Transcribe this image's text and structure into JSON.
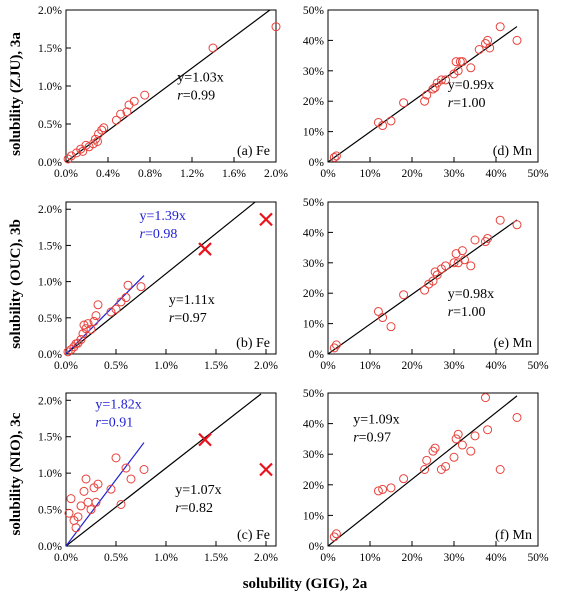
{
  "figure": {
    "xlabel": "solubility (GIG), 2a",
    "row_labels": [
      "solubility (ZJU), 3a",
      "solubility (OUC), 3b",
      "solubility (NIO), 3c"
    ]
  },
  "colors": {
    "points": "#e8413b",
    "fit_black": "#000000",
    "fit_blue": "#1f1fd6",
    "axis": "#000000"
  },
  "chart_data": [
    {
      "id": "a",
      "type": "scatter",
      "panel_label": "(a) Fe",
      "xlim": [
        0,
        2.0
      ],
      "ylim": [
        0,
        2.0
      ],
      "xticks": [
        "0.0%",
        "0.4%",
        "0.8%",
        "1.2%",
        "1.6%",
        "2.0%"
      ],
      "yticks": [
        "0.0%",
        "0.5%",
        "1.0%",
        "1.5%",
        "2.0%"
      ],
      "xtick_values": [
        0,
        0.4,
        0.8,
        1.2,
        1.6,
        2.0
      ],
      "ytick_values": [
        0,
        0.5,
        1.0,
        1.5,
        2.0
      ],
      "points": [
        [
          0.02,
          0.04
        ],
        [
          0.05,
          0.08
        ],
        [
          0.1,
          0.12
        ],
        [
          0.14,
          0.17
        ],
        [
          0.16,
          0.14
        ],
        [
          0.19,
          0.22
        ],
        [
          0.22,
          0.2
        ],
        [
          0.26,
          0.24
        ],
        [
          0.28,
          0.3
        ],
        [
          0.3,
          0.27
        ],
        [
          0.31,
          0.37
        ],
        [
          0.34,
          0.42
        ],
        [
          0.36,
          0.45
        ],
        [
          0.48,
          0.55
        ],
        [
          0.52,
          0.63
        ],
        [
          0.58,
          0.66
        ],
        [
          0.6,
          0.75
        ],
        [
          0.65,
          0.8
        ],
        [
          0.75,
          0.88
        ],
        [
          1.4,
          1.5
        ],
        [
          2.0,
          1.78
        ]
      ],
      "crosses": [],
      "fits": [
        {
          "slope": 1.03,
          "x_range": [
            0,
            2.0
          ],
          "color": "#000000",
          "eq": "y=1.03x",
          "r": "0.99"
        }
      ]
    },
    {
      "id": "d",
      "type": "scatter",
      "panel_label": "(d) Mn",
      "xlim": [
        0,
        50
      ],
      "ylim": [
        0,
        50
      ],
      "xticks": [
        "0%",
        "10%",
        "20%",
        "30%",
        "40%",
        "50%"
      ],
      "yticks": [
        "0%",
        "10%",
        "20%",
        "30%",
        "40%",
        "50%"
      ],
      "xtick_values": [
        0,
        10,
        20,
        30,
        40,
        50
      ],
      "ytick_values": [
        0,
        10,
        20,
        30,
        40,
        50
      ],
      "points": [
        [
          1.5,
          1.5
        ],
        [
          2,
          2
        ],
        [
          12,
          13
        ],
        [
          13,
          12
        ],
        [
          15,
          13.5
        ],
        [
          18,
          19.5
        ],
        [
          23,
          20
        ],
        [
          23.5,
          22
        ],
        [
          25,
          24
        ],
        [
          25.5,
          24.5
        ],
        [
          26,
          26
        ],
        [
          27,
          27
        ],
        [
          28,
          27
        ],
        [
          30,
          29
        ],
        [
          30.5,
          33
        ],
        [
          31,
          30
        ],
        [
          31.5,
          33
        ],
        [
          32,
          33
        ],
        [
          34,
          31
        ],
        [
          36,
          37
        ],
        [
          37.5,
          39
        ],
        [
          38,
          40
        ],
        [
          38.5,
          37.5
        ],
        [
          41,
          44.5
        ],
        [
          45,
          40
        ]
      ],
      "crosses": [],
      "fits": [
        {
          "slope": 0.99,
          "x_range": [
            0,
            45
          ],
          "color": "#000000",
          "eq": "y=0.99x",
          "r": "1.00"
        }
      ]
    },
    {
      "id": "b",
      "type": "scatter",
      "panel_label": "(b) Fe",
      "xlim": [
        0,
        2.1
      ],
      "ylim": [
        0,
        2.1
      ],
      "xticks": [
        "0.0%",
        "0.5%",
        "1.0%",
        "1.5%",
        "2.0%"
      ],
      "yticks": [
        "0.0%",
        "0.5%",
        "1.0%",
        "1.5%",
        "2.0%"
      ],
      "xtick_values": [
        0,
        0.5,
        1.0,
        1.5,
        2.0
      ],
      "ytick_values": [
        0,
        0.5,
        1.0,
        1.5,
        2.0
      ],
      "points": [
        [
          0.02,
          0.03
        ],
        [
          0.05,
          0.06
        ],
        [
          0.08,
          0.1
        ],
        [
          0.1,
          0.14
        ],
        [
          0.12,
          0.15
        ],
        [
          0.15,
          0.2
        ],
        [
          0.17,
          0.28
        ],
        [
          0.18,
          0.4
        ],
        [
          0.2,
          0.35
        ],
        [
          0.22,
          0.42
        ],
        [
          0.25,
          0.34
        ],
        [
          0.28,
          0.45
        ],
        [
          0.3,
          0.53
        ],
        [
          0.32,
          0.68
        ],
        [
          0.45,
          0.58
        ],
        [
          0.5,
          0.62
        ],
        [
          0.55,
          0.72
        ],
        [
          0.6,
          0.78
        ],
        [
          0.62,
          0.95
        ],
        [
          0.75,
          0.93
        ]
      ],
      "crosses": [
        [
          1.39,
          1.45
        ],
        [
          2.0,
          1.86
        ]
      ],
      "fits": [
        {
          "slope": 1.11,
          "x_range": [
            0,
            1.9
          ],
          "color": "#000000",
          "eq": "y=1.11x",
          "r": "0.97"
        },
        {
          "slope": 1.39,
          "x_range": [
            0,
            0.78
          ],
          "color": "#1f1fd6",
          "eq": "y=1.39x",
          "r": "0.98"
        }
      ]
    },
    {
      "id": "e",
      "type": "scatter",
      "panel_label": "(e) Mn",
      "xlim": [
        0,
        50
      ],
      "ylim": [
        0,
        50
      ],
      "xticks": [
        "0%",
        "10%",
        "20%",
        "30%",
        "40%",
        "50%"
      ],
      "yticks": [
        "0%",
        "10%",
        "20%",
        "30%",
        "40%",
        "50%"
      ],
      "xtick_values": [
        0,
        10,
        20,
        30,
        40,
        50
      ],
      "ytick_values": [
        0,
        10,
        20,
        30,
        40,
        50
      ],
      "points": [
        [
          1.5,
          2
        ],
        [
          2,
          3
        ],
        [
          12,
          14
        ],
        [
          13,
          12
        ],
        [
          15,
          9
        ],
        [
          18,
          19.5
        ],
        [
          23,
          21
        ],
        [
          24,
          23
        ],
        [
          25,
          24
        ],
        [
          25.5,
          27
        ],
        [
          26,
          26
        ],
        [
          27,
          28
        ],
        [
          28,
          29
        ],
        [
          30,
          30
        ],
        [
          30.5,
          33
        ],
        [
          31,
          30
        ],
        [
          32,
          34
        ],
        [
          32.5,
          31
        ],
        [
          34,
          29
        ],
        [
          35,
          37.5
        ],
        [
          37.5,
          37
        ],
        [
          38,
          38
        ],
        [
          41,
          44
        ],
        [
          45,
          42.5
        ]
      ],
      "crosses": [],
      "fits": [
        {
          "slope": 0.98,
          "x_range": [
            0,
            45
          ],
          "color": "#000000",
          "eq": "y=0.98x",
          "r": "1.00"
        }
      ]
    },
    {
      "id": "c",
      "type": "scatter",
      "panel_label": "(c) Fe",
      "xlim": [
        0,
        2.1
      ],
      "ylim": [
        0,
        2.1
      ],
      "xticks": [
        "0.0%",
        "0.5%",
        "1.0%",
        "1.5%",
        "2.0%"
      ],
      "yticks": [
        "0.0%",
        "0.5%",
        "1.0%",
        "1.5%",
        "2.0%"
      ],
      "xtick_values": [
        0,
        0.5,
        1.0,
        1.5,
        2.0
      ],
      "ytick_values": [
        0,
        0.5,
        1.0,
        1.5,
        2.0
      ],
      "points": [
        [
          0.03,
          0.45
        ],
        [
          0.05,
          0.65
        ],
        [
          0.08,
          0.35
        ],
        [
          0.1,
          0.25
        ],
        [
          0.12,
          0.4
        ],
        [
          0.15,
          0.55
        ],
        [
          0.18,
          0.75
        ],
        [
          0.2,
          0.92
        ],
        [
          0.22,
          0.6
        ],
        [
          0.25,
          0.5
        ],
        [
          0.28,
          0.8
        ],
        [
          0.3,
          0.6
        ],
        [
          0.32,
          0.85
        ],
        [
          0.45,
          0.78
        ],
        [
          0.5,
          1.21
        ],
        [
          0.55,
          0.57
        ],
        [
          0.6,
          1.07
        ],
        [
          0.65,
          0.92
        ],
        [
          0.78,
          1.05
        ]
      ],
      "crosses": [
        [
          1.39,
          1.46
        ],
        [
          2.0,
          1.05
        ]
      ],
      "fits": [
        {
          "slope": 1.07,
          "x_range": [
            0,
            1.95
          ],
          "color": "#000000",
          "eq": "y=1.07x",
          "r": "0.82"
        },
        {
          "slope": 1.82,
          "x_range": [
            0,
            0.78
          ],
          "color": "#1f1fd6",
          "eq": "y=1.82x",
          "r": "0.91"
        }
      ]
    },
    {
      "id": "f",
      "type": "scatter",
      "panel_label": "(f) Mn",
      "xlim": [
        0,
        50
      ],
      "ylim": [
        0,
        50
      ],
      "xticks": [
        "0%",
        "10%",
        "20%",
        "30%",
        "40%",
        "50%"
      ],
      "yticks": [
        "0%",
        "10%",
        "20%",
        "30%",
        "40%",
        "50%"
      ],
      "xtick_values": [
        0,
        10,
        20,
        30,
        40,
        50
      ],
      "ytick_values": [
        0,
        10,
        20,
        30,
        40,
        50
      ],
      "points": [
        [
          1.5,
          3
        ],
        [
          2,
          4
        ],
        [
          12,
          18
        ],
        [
          13,
          18.5
        ],
        [
          15,
          19
        ],
        [
          18,
          22
        ],
        [
          23,
          25
        ],
        [
          23.5,
          28
        ],
        [
          25,
          31
        ],
        [
          25.5,
          32
        ],
        [
          27,
          25
        ],
        [
          28,
          26
        ],
        [
          30,
          29
        ],
        [
          30.5,
          35
        ],
        [
          31,
          36.5
        ],
        [
          32,
          33
        ],
        [
          34,
          31
        ],
        [
          35,
          36
        ],
        [
          37.5,
          48.5
        ],
        [
          38,
          38
        ],
        [
          41,
          25
        ],
        [
          45,
          42
        ]
      ],
      "crosses": [],
      "fits": [
        {
          "slope": 1.09,
          "x_range": [
            0,
            45
          ],
          "color": "#000000",
          "eq": "y=1.09x",
          "r": "0.97"
        }
      ]
    }
  ]
}
